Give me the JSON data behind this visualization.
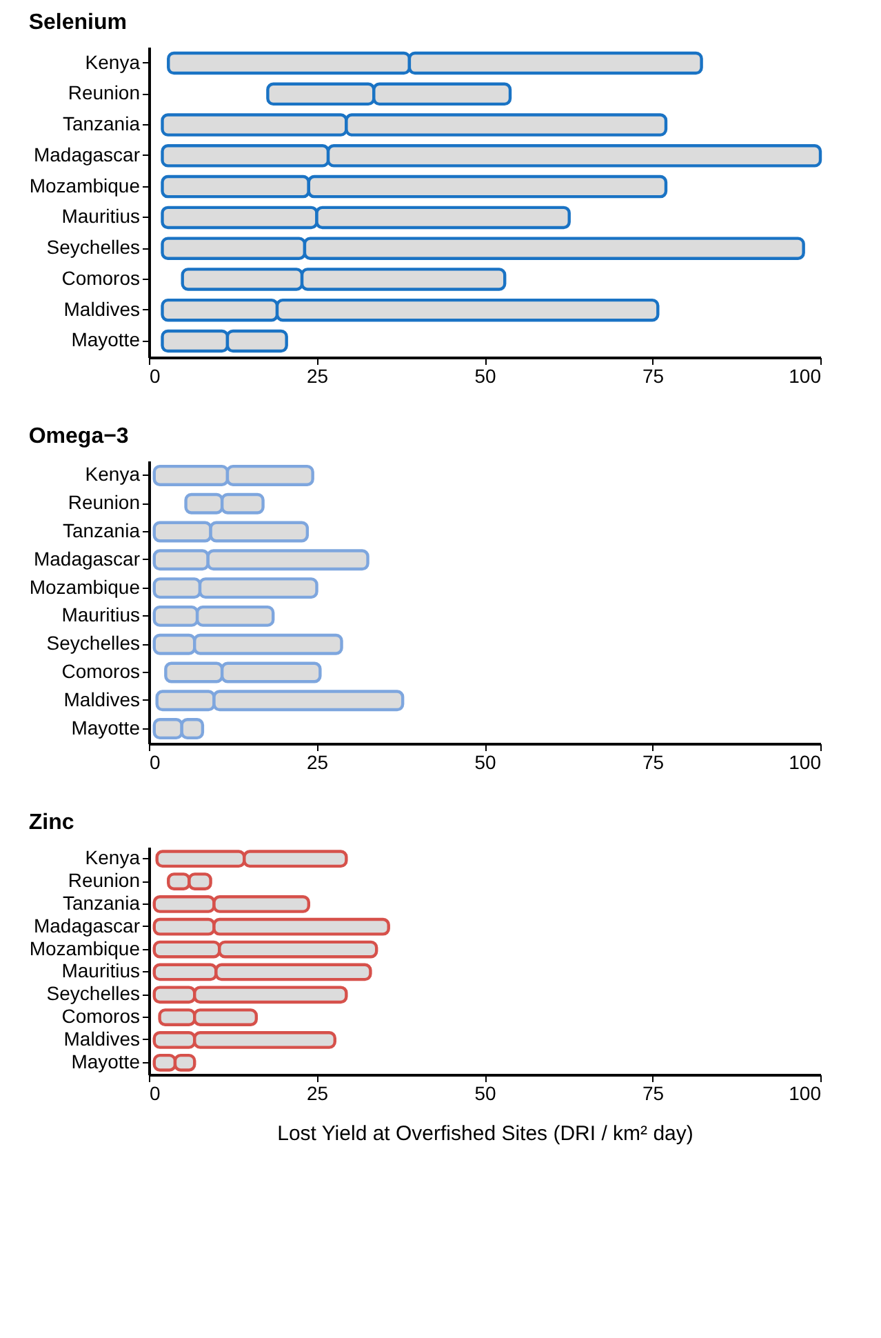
{
  "chart_data": [
    {
      "type": "bar",
      "orientation": "horizontal",
      "title": "Selenium",
      "categories": [
        "Kenya",
        "Reunion",
        "Tanzania",
        "Madagascar",
        "Mozambique",
        "Mauritius",
        "Seychelles",
        "Comoros",
        "Maldives",
        "Mayotte"
      ],
      "series": [
        {
          "color": "#1a73c4",
          "base": [
            2.9,
            17.7,
            2,
            2,
            2,
            2,
            2,
            5,
            2,
            2
          ],
          "values": [
            35.9,
            15.8,
            27.4,
            24.7,
            21.8,
            23,
            21.2,
            17.8,
            17.1,
            9.7
          ]
        },
        {
          "color": "#1a73c4",
          "base": [
            38.8,
            33.5,
            29.4,
            26.7,
            23.8,
            25,
            23.2,
            22.8,
            19.1,
            11.7
          ],
          "values": [
            43.5,
            20.3,
            47.6,
            73.3,
            53.2,
            37.6,
            74.3,
            30.2,
            56.7,
            8.8
          ]
        }
      ],
      "xlim": [
        0,
        100
      ],
      "xticks": [
        0,
        25,
        50,
        75,
        100
      ],
      "grid": false
    },
    {
      "type": "bar",
      "orientation": "horizontal",
      "title": "Omega−3",
      "categories": [
        "Kenya",
        "Reunion",
        "Tanzania",
        "Madagascar",
        "Mozambique",
        "Mauritius",
        "Seychelles",
        "Comoros",
        "Maldives",
        "Mayotte"
      ],
      "series": [
        {
          "color": "#7ea6de",
          "base": [
            0.8,
            5.5,
            0.8,
            0.8,
            0.8,
            0.8,
            0.8,
            2.5,
            1.2,
            0.8
          ],
          "values": [
            10.9,
            5.4,
            8.4,
            8,
            6.8,
            6.4,
            6,
            8.4,
            8.5,
            4.1
          ]
        },
        {
          "color": "#7ea6de",
          "base": [
            11.7,
            10.9,
            9.2,
            8.8,
            7.6,
            7.2,
            6.8,
            10.9,
            9.7,
            4.9
          ],
          "values": [
            12.7,
            6.1,
            14.4,
            23.8,
            17.4,
            11.3,
            21.9,
            14.6,
            28.1,
            3.1
          ]
        }
      ],
      "xlim": [
        0,
        100
      ],
      "xticks": [
        0,
        25,
        50,
        75,
        100
      ],
      "grid": false
    },
    {
      "type": "bar",
      "orientation": "horizontal",
      "title": "Zinc",
      "xlabel": "Lost Yield at Overfished Sites (DRI / km² day)",
      "categories": [
        "Kenya",
        "Reunion",
        "Tanzania",
        "Madagascar",
        "Mozambique",
        "Mauritius",
        "Seychelles",
        "Comoros",
        "Maldives",
        "Mayotte"
      ],
      "series": [
        {
          "color": "#d6514b",
          "base": [
            1.2,
            2.9,
            0.8,
            0.8,
            0.8,
            0.8,
            0.8,
            1.6,
            0.8,
            0.8
          ],
          "values": [
            13,
            3.1,
            8.9,
            8.9,
            9.7,
            9.2,
            6,
            5.2,
            6,
            3.1
          ]
        },
        {
          "color": "#d6514b",
          "base": [
            14.2,
            6,
            9.7,
            9.7,
            10.5,
            10,
            6.8,
            6.8,
            6.8,
            3.9
          ],
          "values": [
            15.2,
            3.2,
            14.1,
            26,
            23.4,
            23,
            22.6,
            9.2,
            20.9,
            2.9
          ]
        }
      ],
      "xlim": [
        0,
        100
      ],
      "xticks": [
        0,
        25,
        50,
        75,
        100
      ],
      "grid": false
    }
  ]
}
